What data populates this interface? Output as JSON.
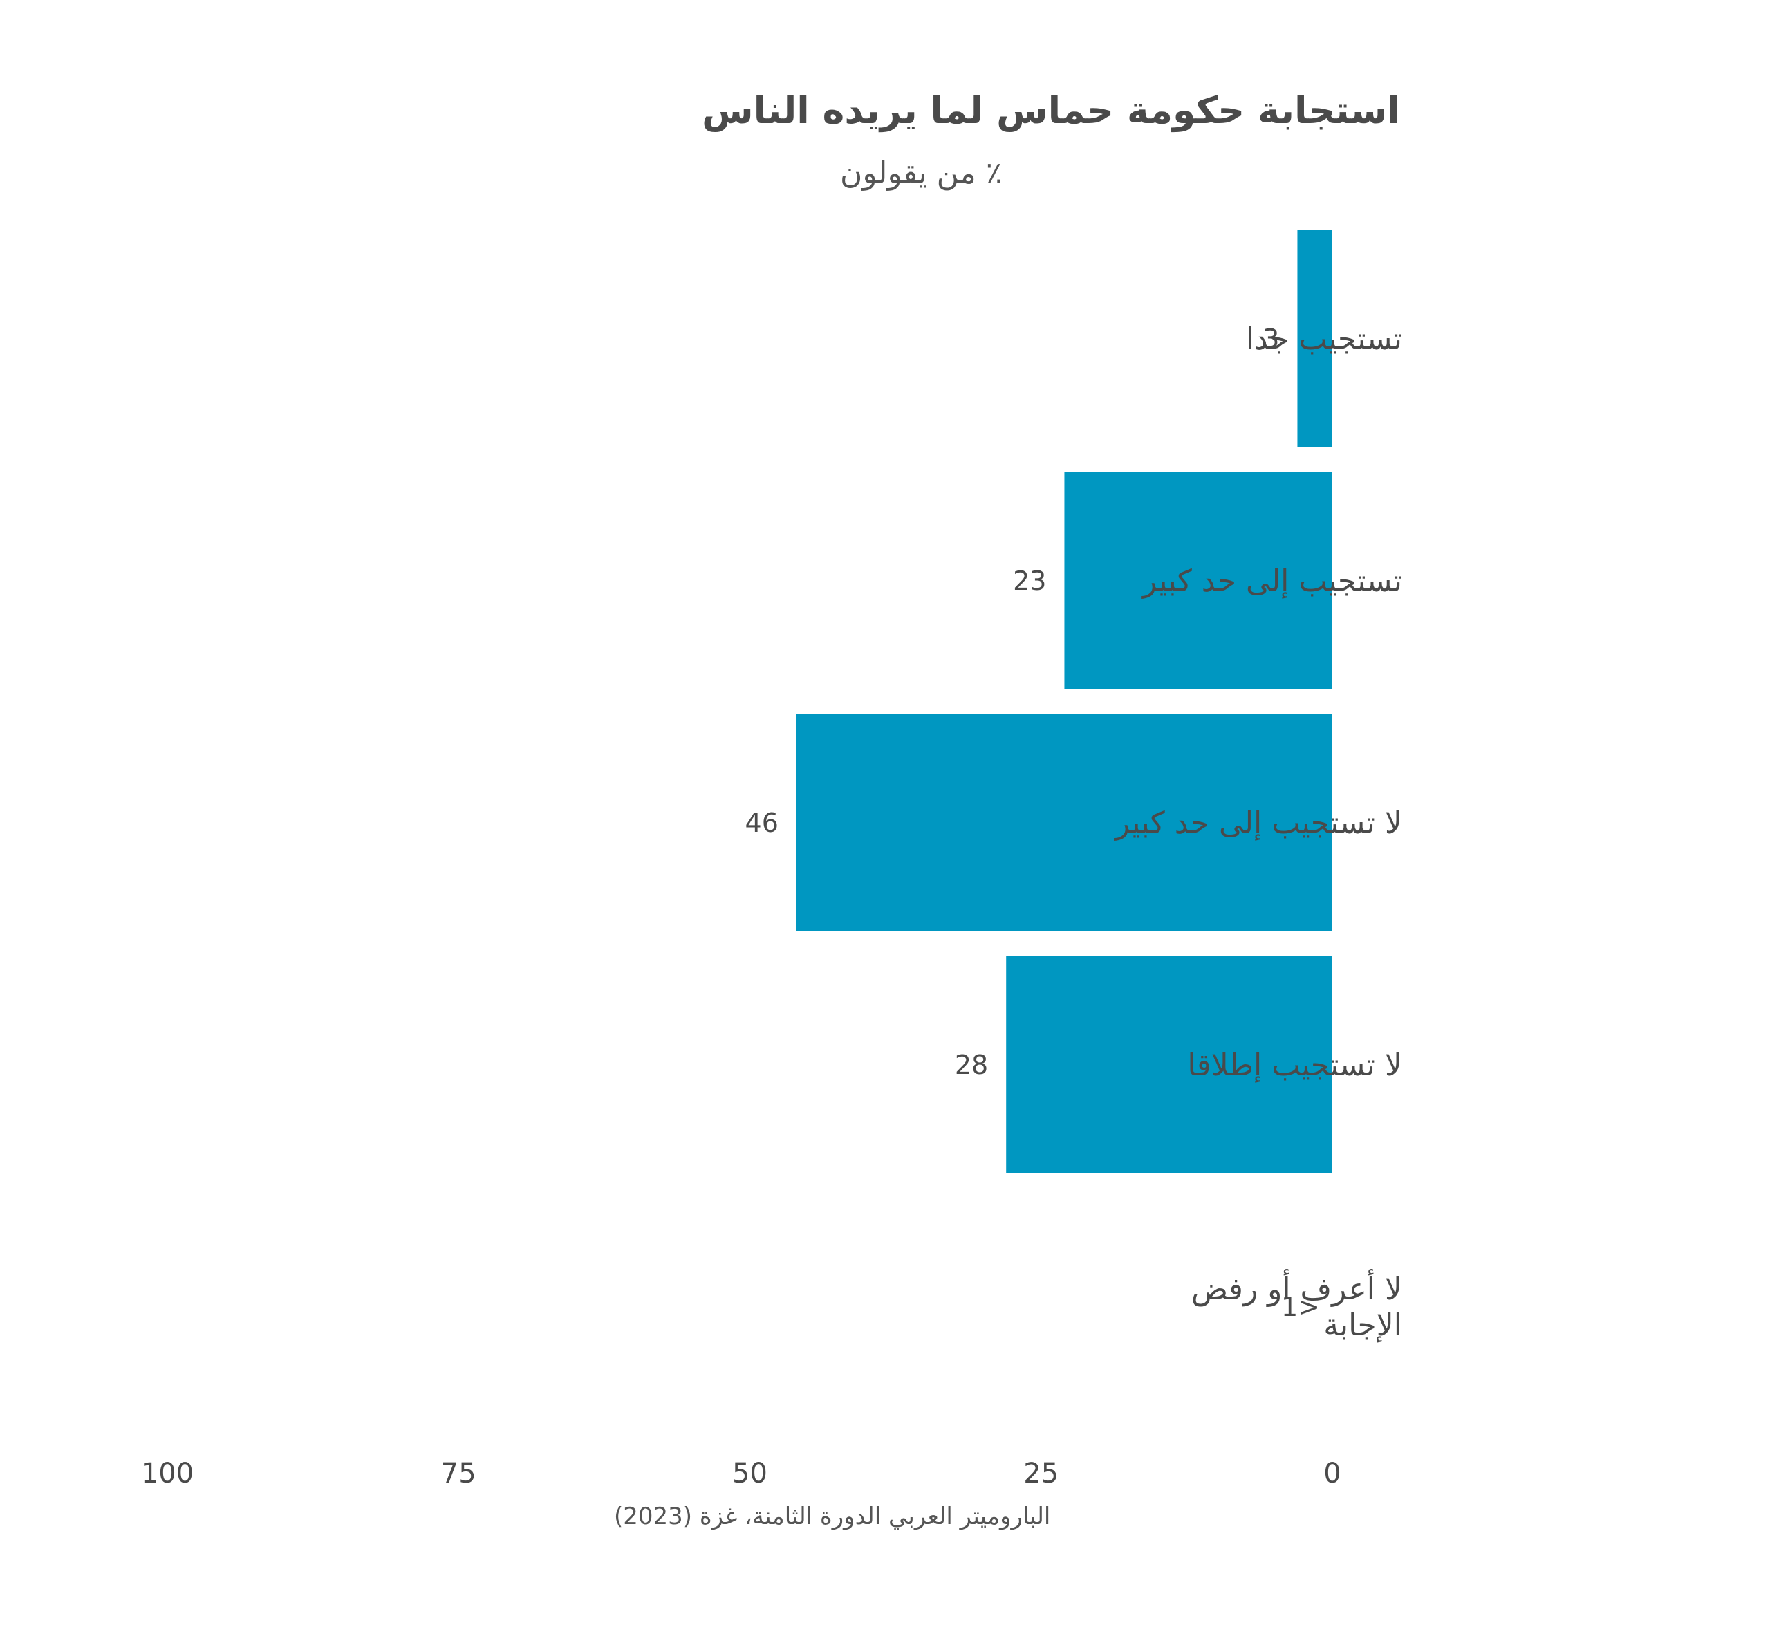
{
  "chart_data": {
    "type": "bar",
    "orientation": "horizontal",
    "direction": "right-to-left",
    "title": "استجابة حكومة حماس لما يريده الناس",
    "subtitle": "٪ من يقولون",
    "categories": [
      "تستجيب جدا",
      "تستجيب إلى حد كبير",
      "لا تستجيب إلى حد كبير",
      "لا تستجيب إطلاقا",
      "لا أعرف أو رفض الإجابة"
    ],
    "values": [
      3,
      23,
      46,
      28,
      0.5
    ],
    "value_labels": [
      "3",
      "23",
      "46",
      "28",
      "1>"
    ],
    "xlim": [
      0,
      100
    ],
    "x_ticks": [
      "0",
      "25",
      "50",
      "75",
      "100"
    ],
    "grid": false,
    "legend": false,
    "bar_color": "#0097c1",
    "source": "الباروميتر العربي الدورة الثامنة، غزة (2023)"
  }
}
